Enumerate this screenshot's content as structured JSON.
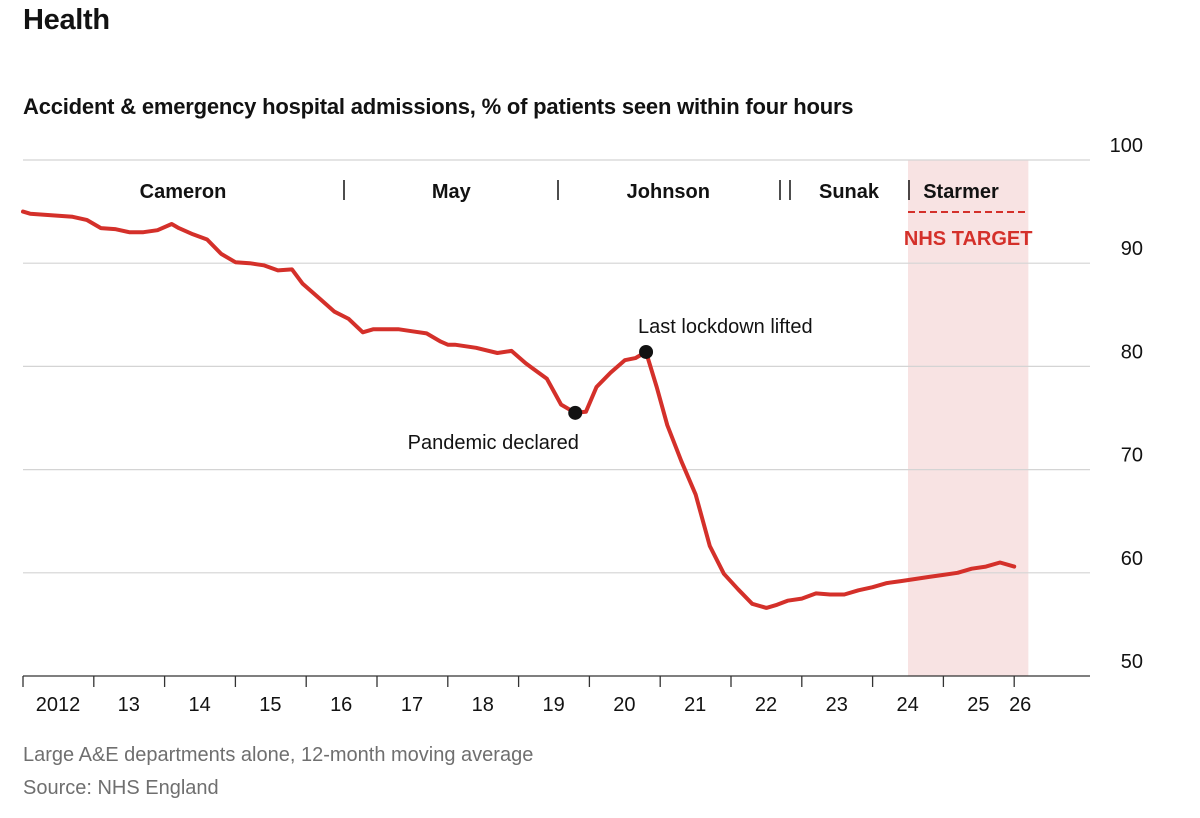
{
  "section_title": "Health",
  "chart_data": {
    "type": "line",
    "title": "Accident & emergency hospital admissions, % of patients seen within four hours",
    "ylim": [
      50,
      100
    ],
    "y_ticks": [
      50,
      60,
      70,
      80,
      90,
      100
    ],
    "xlim": [
      2012,
      2026.4
    ],
    "x_ticks": [
      {
        "value": 2012,
        "label": "2012"
      },
      {
        "value": 2013,
        "label": "13"
      },
      {
        "value": 2014,
        "label": "14"
      },
      {
        "value": 2015,
        "label": "15"
      },
      {
        "value": 2016,
        "label": "16"
      },
      {
        "value": 2017,
        "label": "17"
      },
      {
        "value": 2018,
        "label": "18"
      },
      {
        "value": 2019,
        "label": "19"
      },
      {
        "value": 2020,
        "label": "20"
      },
      {
        "value": 2021,
        "label": "21"
      },
      {
        "value": 2022,
        "label": "22"
      },
      {
        "value": 2023,
        "label": "23"
      },
      {
        "value": 2024,
        "label": "24"
      },
      {
        "value": 2025,
        "label": "25"
      },
      {
        "value": 2026,
        "label": "26"
      }
    ],
    "series": [
      {
        "name": "% seen within four hours",
        "color": "#d4302a",
        "x": [
          2012.0,
          2012.1,
          2012.3,
          2012.5,
          2012.7,
          2012.9,
          2013.1,
          2013.3,
          2013.5,
          2013.7,
          2013.9,
          2014.1,
          2014.2,
          2014.4,
          2014.6,
          2014.8,
          2015.0,
          2015.2,
          2015.4,
          2015.6,
          2015.8,
          2015.95,
          2016.2,
          2016.4,
          2016.6,
          2016.8,
          2016.95,
          2017.1,
          2017.3,
          2017.5,
          2017.7,
          2017.9,
          2018.0,
          2018.1,
          2018.4,
          2018.7,
          2018.9,
          2019.1,
          2019.2,
          2019.4,
          2019.6,
          2019.8,
          2019.95,
          2020.1,
          2020.3,
          2020.5,
          2020.65,
          2020.8,
          2020.95,
          2021.1,
          2021.3,
          2021.5,
          2021.7,
          2021.9,
          2022.1,
          2022.3,
          2022.5,
          2022.65,
          2022.8,
          2023.0,
          2023.2,
          2023.4,
          2023.6,
          2023.8,
          2024.0,
          2024.2,
          2024.4,
          2024.6,
          2024.8,
          2025.0,
          2025.2,
          2025.4,
          2025.6,
          2025.8,
          2026.0
        ],
        "values": [
          95.0,
          94.8,
          94.7,
          94.6,
          94.5,
          94.2,
          93.4,
          93.3,
          93.0,
          93.0,
          93.2,
          93.8,
          93.4,
          92.8,
          92.3,
          90.9,
          90.1,
          90.0,
          89.8,
          89.3,
          89.4,
          88.0,
          86.5,
          85.3,
          84.6,
          83.3,
          83.6,
          83.6,
          83.6,
          83.4,
          83.2,
          82.4,
          82.1,
          82.1,
          81.8,
          81.3,
          81.5,
          80.3,
          79.8,
          78.8,
          76.3,
          75.5,
          75.6,
          78.0,
          79.4,
          80.6,
          80.8,
          81.4,
          78.0,
          74.3,
          70.8,
          67.6,
          62.6,
          59.9,
          58.4,
          57.0,
          56.6,
          56.9,
          57.3,
          57.5,
          58.0,
          57.9,
          57.9,
          58.3,
          58.6,
          59.0,
          59.2,
          59.4,
          59.6,
          59.8,
          60.0,
          60.4,
          60.6,
          61.0,
          60.6
        ]
      }
    ],
    "prime_ministers": [
      {
        "name": "Cameron",
        "start": 2012.0,
        "end": 2016.55
      },
      {
        "name": "May",
        "start": 2016.55,
        "end": 2019.55
      },
      {
        "name": "Johnson",
        "start": 2019.55,
        "end": 2022.68
      },
      {
        "name": "Sunak",
        "start": 2022.8,
        "end": 2024.5
      },
      {
        "name": "Starmer",
        "start": 2024.5,
        "end": 2026.2
      }
    ],
    "target": {
      "value": 95,
      "label": "NHS TARGET"
    },
    "annotations": [
      {
        "label": "Pandemic declared",
        "x": 2019.8,
        "y": 75.5
      },
      {
        "label": "Last lockdown lifted",
        "x": 2020.8,
        "y": 81.4
      }
    ],
    "shaded_period": {
      "start": 2024.5,
      "end": 2026.2
    }
  },
  "footer": {
    "note": "Large A&E departments alone, 12-month moving average",
    "source": "Source: NHS England"
  },
  "colors": {
    "line": "#d4302a",
    "shade": "#f8e3e3",
    "grid": "#d4d4d4",
    "text": "#121212",
    "muted": "#6f6f6f"
  }
}
